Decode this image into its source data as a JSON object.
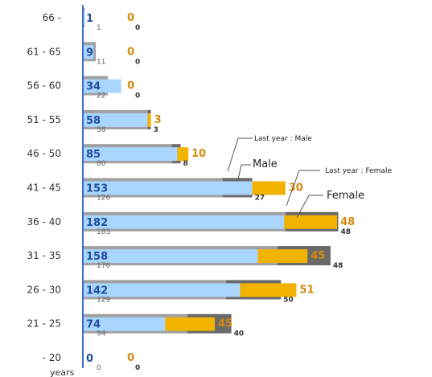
{
  "chart_data": {
    "type": "bar",
    "orientation": "horizontal",
    "categories": [
      "66 -",
      "61 - 65",
      "56 - 60",
      "51 - 55",
      "46 - 50",
      "41 - 45",
      "36 - 40",
      "31 - 35",
      "26 - 30",
      "21 - 25",
      "- 20"
    ],
    "unit_label": "years",
    "series": [
      {
        "name": "Male",
        "values": [
          1,
          9,
          34,
          58,
          85,
          153,
          182,
          158,
          142,
          74,
          0
        ],
        "color": "#a9d5ff"
      },
      {
        "name": "Female",
        "values": [
          0,
          0,
          0,
          3,
          10,
          30,
          48,
          45,
          51,
          45,
          0
        ],
        "color": "#f2b200"
      },
      {
        "name": "Last year : Male",
        "values": [
          1,
          11,
          22,
          58,
          80,
          126,
          183,
          176,
          129,
          94,
          0
        ],
        "color": "#a0a0a0"
      },
      {
        "name": "Last year : Female",
        "values": [
          0,
          0,
          0,
          3,
          8,
          27,
          48,
          48,
          50,
          40,
          0
        ],
        "color": "#6a6a6a"
      }
    ],
    "stacked": true,
    "legend": [
      "Last year : Male",
      "Male",
      "Last year : Female",
      "Female"
    ],
    "legend_placement": "right, callout annotations",
    "grid": false
  }
}
